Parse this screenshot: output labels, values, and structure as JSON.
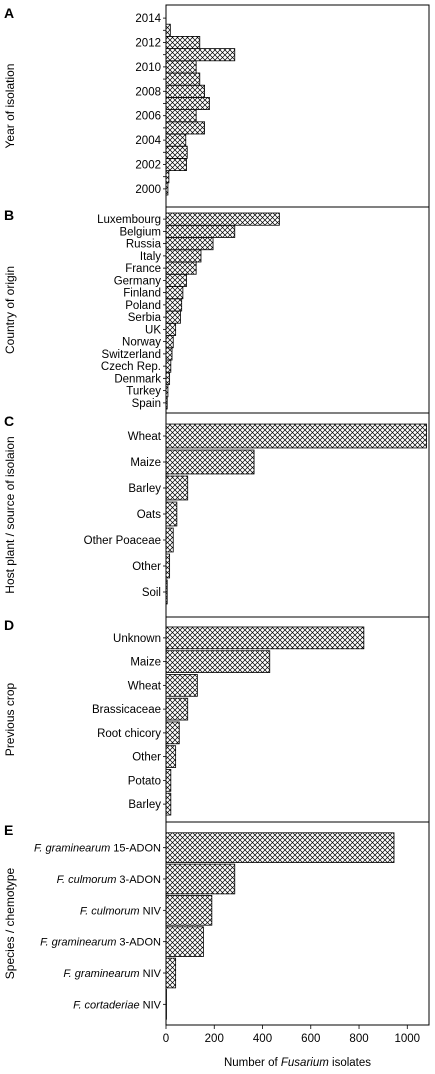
{
  "chart_data": [
    {
      "type": "bar",
      "panel_label": "A",
      "ylabel": "Year of isolation",
      "categories": [
        "2000",
        "2001",
        "2002",
        "2003",
        "2004",
        "2005",
        "2006",
        "2007",
        "2008",
        "2009",
        "2010",
        "2011",
        "2012",
        "2013",
        "2014"
      ],
      "tick_labels": [
        "2000",
        "",
        "2002",
        "",
        "2004",
        "",
        "2006",
        "",
        "2008",
        "",
        "2010",
        "",
        "2012",
        "",
        "2014"
      ],
      "values": [
        8,
        12,
        85,
        88,
        82,
        160,
        125,
        180,
        160,
        140,
        125,
        285,
        140,
        18,
        0
      ]
    },
    {
      "type": "bar",
      "panel_label": "B",
      "ylabel": "Country of origin",
      "categories": [
        "Spain",
        "Turkey",
        "Denmark",
        "Czech Rep.",
        "Switzerland",
        "Norway",
        "UK",
        "Serbia",
        "Poland",
        "Finland",
        "Germany",
        "France",
        "Italy",
        "Russia",
        "Belgium",
        "Luxembourg"
      ],
      "values": [
        5,
        8,
        15,
        20,
        25,
        30,
        40,
        60,
        65,
        70,
        85,
        125,
        145,
        195,
        285,
        470
      ]
    },
    {
      "type": "bar",
      "panel_label": "C",
      "ylabel": "Host plant / source of isolaion",
      "categories": [
        "Soil",
        "Other",
        "Other Poaceae",
        "Oats",
        "Barley",
        "Maize",
        "Wheat"
      ],
      "values": [
        5,
        15,
        30,
        45,
        90,
        365,
        1080
      ]
    },
    {
      "type": "bar",
      "panel_label": "D",
      "ylabel": "Previous crop",
      "categories": [
        "Barley",
        "Potato",
        "Other",
        "Root chicory",
        "Brassicaceae",
        "Wheat",
        "Maize",
        "Unknown"
      ],
      "values": [
        20,
        20,
        40,
        55,
        90,
        130,
        430,
        820
      ]
    },
    {
      "type": "bar",
      "panel_label": "E",
      "ylabel": "Species / chemotype",
      "categories": [
        {
          "italic": "F. cortaderiae",
          "rest": " NIV"
        },
        {
          "italic": "F. graminearum",
          "rest": " NIV"
        },
        {
          "italic": "F. graminearum",
          "rest": " 3-ADON"
        },
        {
          "italic": "F. culmorum",
          "rest": " NIV"
        },
        {
          "italic": "F. culmorum",
          "rest": " 3-ADON"
        },
        {
          "italic": "F. graminearum",
          "rest": " 15-ADON"
        }
      ],
      "values": [
        2,
        40,
        155,
        190,
        285,
        945
      ]
    }
  ],
  "x_axis": {
    "ticks": [
      0,
      200,
      400,
      600,
      800,
      1000
    ],
    "range": [
      0,
      1090
    ],
    "label_pre": "Number of ",
    "label_italic": "Fusarium",
    "label_post": " isolates"
  },
  "colors": {
    "bar_fill": "#ffffff",
    "bar_pattern": "#000000",
    "axis": "#000000"
  }
}
